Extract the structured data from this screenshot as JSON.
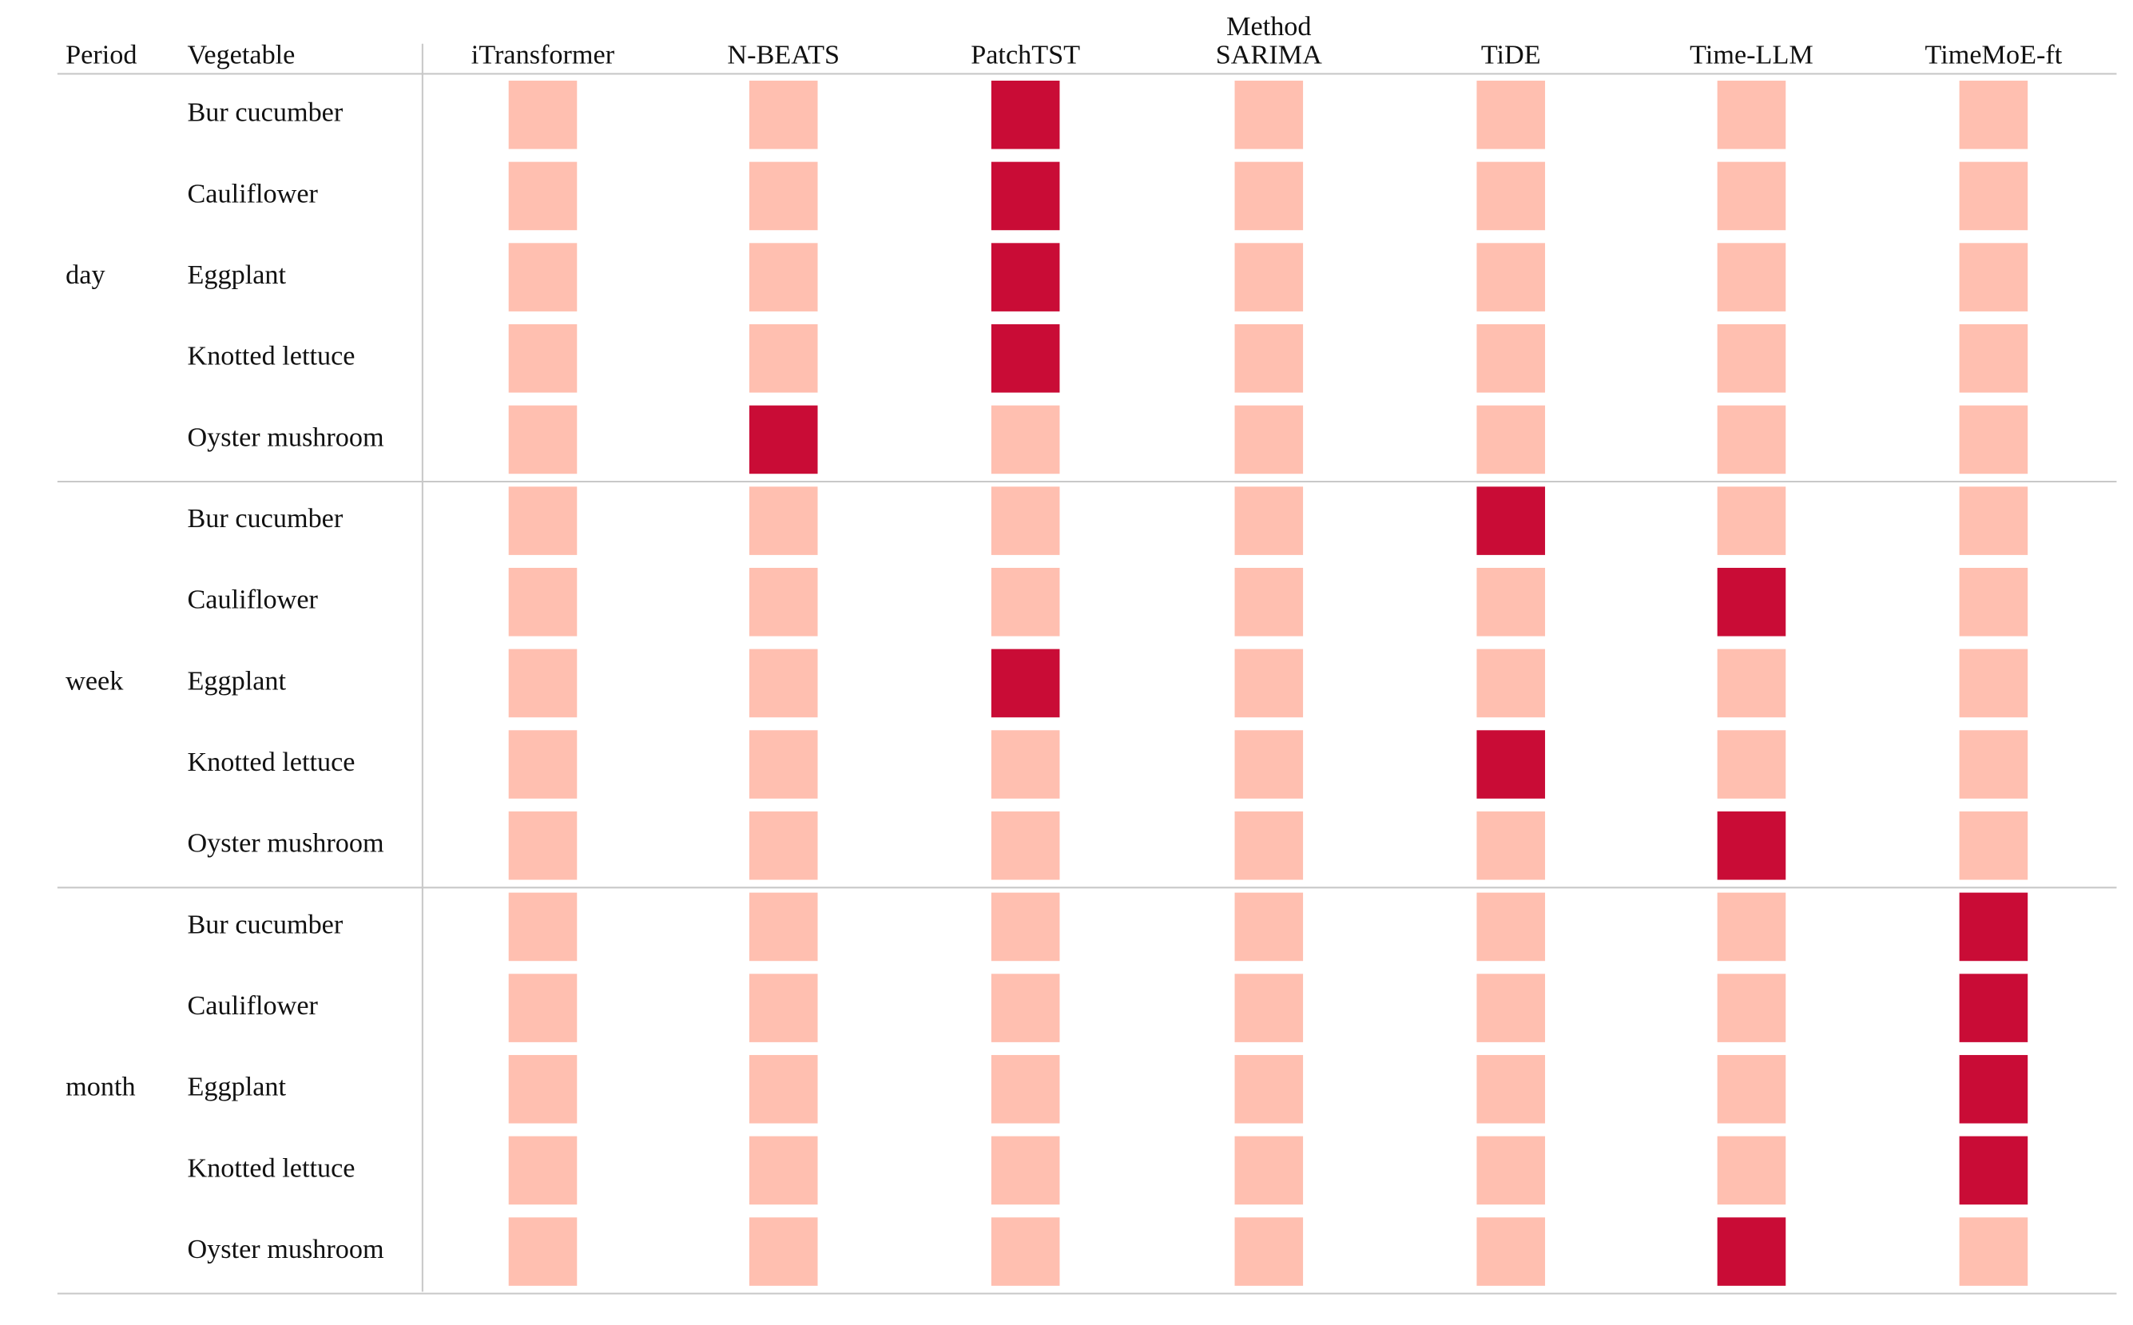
{
  "header": {
    "period": "Period",
    "vegetable": "Vegetable",
    "method": "Method",
    "methods": [
      "iTransformer",
      "N-BEATS",
      "PatchTST",
      "SARIMA",
      "TiDE",
      "Time-LLM",
      "TimeMoE-ft"
    ]
  },
  "cell_colors": [
    "#ffbfb0",
    "#c90c36"
  ],
  "groups": [
    {
      "period": "day",
      "rows": [
        {
          "vegetable": "Bur cucumber",
          "marks": [
            0,
            0,
            1,
            0,
            0,
            0,
            0
          ]
        },
        {
          "vegetable": "Cauliflower",
          "marks": [
            0,
            0,
            1,
            0,
            0,
            0,
            0
          ]
        },
        {
          "vegetable": "Eggplant",
          "marks": [
            0,
            0,
            1,
            0,
            0,
            0,
            0
          ]
        },
        {
          "vegetable": "Knotted lettuce",
          "marks": [
            0,
            0,
            1,
            0,
            0,
            0,
            0
          ]
        },
        {
          "vegetable": "Oyster mushroom",
          "marks": [
            0,
            1,
            0,
            0,
            0,
            0,
            0
          ]
        }
      ]
    },
    {
      "period": "week",
      "rows": [
        {
          "vegetable": "Bur cucumber",
          "marks": [
            0,
            0,
            0,
            0,
            1,
            0,
            0
          ]
        },
        {
          "vegetable": "Cauliflower",
          "marks": [
            0,
            0,
            0,
            0,
            0,
            1,
            0
          ]
        },
        {
          "vegetable": "Eggplant",
          "marks": [
            0,
            0,
            1,
            0,
            0,
            0,
            0
          ]
        },
        {
          "vegetable": "Knotted lettuce",
          "marks": [
            0,
            0,
            0,
            0,
            1,
            0,
            0
          ]
        },
        {
          "vegetable": "Oyster mushroom",
          "marks": [
            0,
            0,
            0,
            0,
            0,
            1,
            0
          ]
        }
      ]
    },
    {
      "period": "month",
      "rows": [
        {
          "vegetable": "Bur cucumber",
          "marks": [
            0,
            0,
            0,
            0,
            0,
            0,
            1
          ]
        },
        {
          "vegetable": "Cauliflower",
          "marks": [
            0,
            0,
            0,
            0,
            0,
            0,
            1
          ]
        },
        {
          "vegetable": "Eggplant",
          "marks": [
            0,
            0,
            0,
            0,
            0,
            0,
            1
          ]
        },
        {
          "vegetable": "Knotted lettuce",
          "marks": [
            0,
            0,
            0,
            0,
            0,
            0,
            1
          ]
        },
        {
          "vegetable": "Oyster mushroom",
          "marks": [
            0,
            0,
            0,
            0,
            0,
            1,
            0
          ]
        }
      ]
    }
  ]
}
